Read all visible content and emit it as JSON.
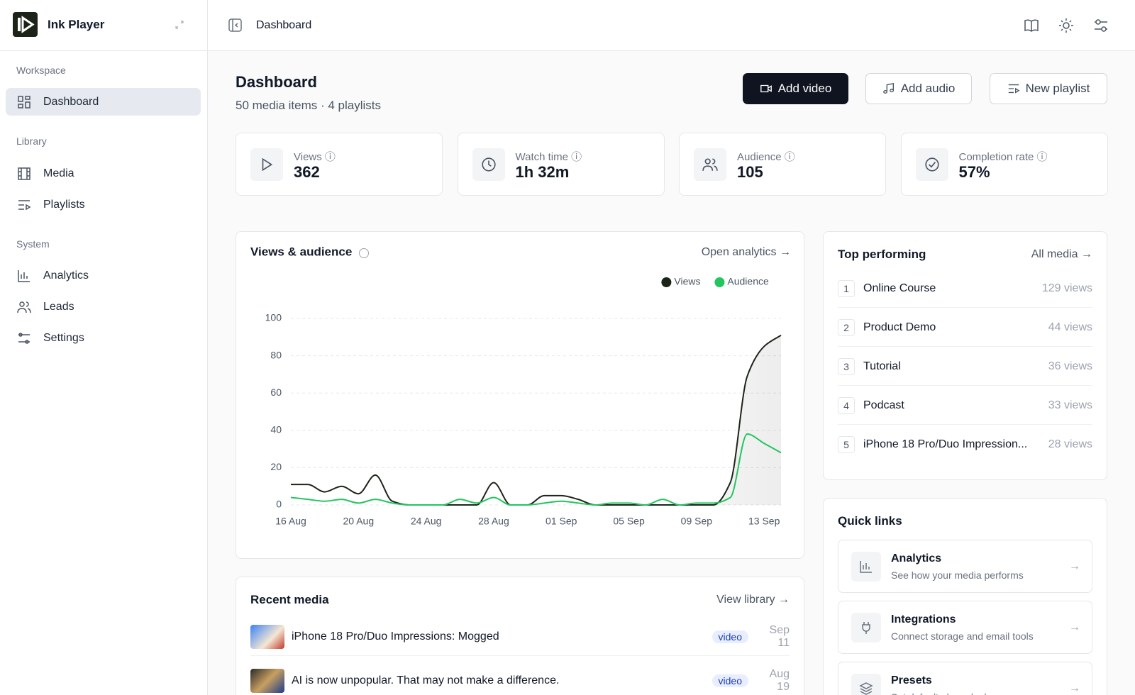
{
  "sidebar": {
    "app_name": "Ink Player",
    "sections": [
      {
        "title": "Workspace",
        "items": [
          "Dashboard"
        ]
      },
      {
        "title": "Library",
        "items": [
          "Media",
          "Playlists"
        ]
      },
      {
        "title": "System",
        "items": [
          "Analytics",
          "Leads",
          "Settings"
        ]
      }
    ]
  },
  "header": {
    "title": "Dashboard"
  },
  "page": {
    "title": "Dashboard",
    "subtitle": "50 media items · 4 playlists",
    "actions": [
      "Add video",
      "Add audio",
      "New playlist"
    ]
  },
  "stats": [
    {
      "label": "Views",
      "value": "362"
    },
    {
      "label": "Watch time",
      "value": "1h 32m"
    },
    {
      "label": "Audience",
      "value": "105"
    },
    {
      "label": "Completion rate",
      "value": "57%"
    }
  ],
  "chart_data": {
    "type": "line",
    "title": "Views & audience",
    "link": "Open analytics",
    "categories": [
      "16 Aug",
      null,
      null,
      null,
      "20 Aug",
      null,
      null,
      null,
      "24 Aug",
      null,
      null,
      null,
      "28 Aug",
      null,
      null,
      null,
      "01 Sep",
      null,
      null,
      null,
      "05 Sep",
      null,
      null,
      null,
      "09 Sep",
      null,
      null,
      null,
      "13 Sep",
      null
    ],
    "series": [
      {
        "name": "Views",
        "color": "#1c2418",
        "values": [
          11,
          11,
          7,
          10,
          6,
          16,
          2,
          0,
          0,
          0,
          0,
          0,
          12,
          0,
          0,
          5,
          5,
          3,
          0,
          0,
          0,
          0,
          0,
          0,
          0,
          0,
          12,
          69,
          85,
          91
        ]
      },
      {
        "name": "Audience",
        "color": "#22c55e",
        "values": [
          4,
          3,
          2,
          3,
          1,
          3,
          1,
          0,
          0,
          0,
          3,
          1,
          4,
          0,
          0,
          1,
          2,
          1,
          0,
          1,
          1,
          0,
          3,
          0,
          1,
          1,
          4,
          38,
          33,
          28
        ]
      }
    ],
    "ylim": [
      0,
      100
    ],
    "yticks": [
      0,
      20,
      40,
      60,
      80,
      100
    ],
    "grid": true,
    "legend": "top-right"
  },
  "top_performing": {
    "title": "Top performing",
    "link": "All media",
    "items": [
      {
        "rank": 1,
        "name": "Online Course",
        "views": "129 views"
      },
      {
        "rank": 2,
        "name": "Product Demo",
        "views": "44 views"
      },
      {
        "rank": 3,
        "name": "Tutorial",
        "views": "36 views"
      },
      {
        "rank": 4,
        "name": "Podcast",
        "views": "33 views"
      },
      {
        "rank": 5,
        "name": "iPhone 18 Pro/Duo Impression...",
        "views": "28 views"
      }
    ]
  },
  "quick_links": {
    "title": "Quick links",
    "items": [
      {
        "title": "Analytics",
        "description": "See how your media performs"
      },
      {
        "title": "Integrations",
        "description": "Connect storage and email tools"
      },
      {
        "title": "Presets",
        "description": "Set default player looks"
      }
    ]
  },
  "recent_media": {
    "title": "Recent media",
    "link": "View library",
    "items": [
      {
        "title": "iPhone 18 Pro/Duo Impressions: Mogged",
        "type": "video",
        "date": "Sep 11"
      },
      {
        "title": "AI is now unpopular. That may not make a difference.",
        "type": "video",
        "date": "Aug 19"
      }
    ]
  }
}
